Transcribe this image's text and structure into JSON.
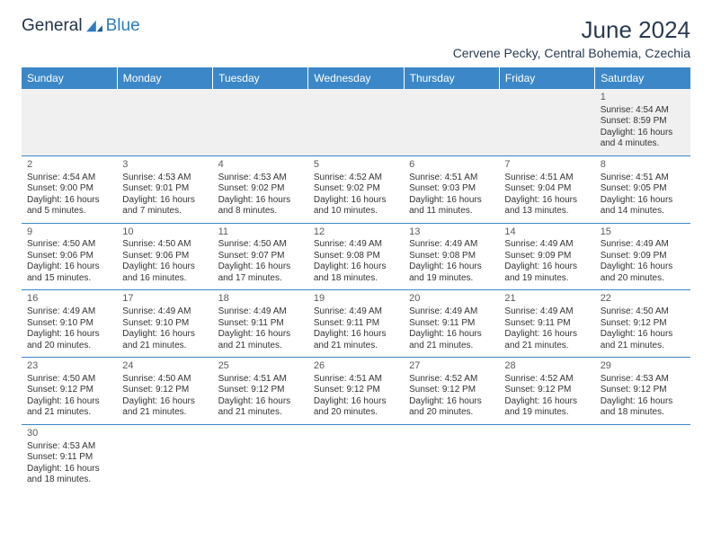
{
  "logo": {
    "text1": "General",
    "text2": "Blue"
  },
  "title": "June 2024",
  "location": "Cervene Pecky, Central Bohemia, Czechia",
  "colors": {
    "header_bg": "#3b87c8",
    "header_text": "#ffffff",
    "border": "#3b87c8",
    "title_color": "#2a3a52",
    "first_row_bg": "#f0f0f0"
  },
  "day_headers": [
    "Sunday",
    "Monday",
    "Tuesday",
    "Wednesday",
    "Thursday",
    "Friday",
    "Saturday"
  ],
  "weeks": [
    [
      null,
      null,
      null,
      null,
      null,
      null,
      {
        "n": "1",
        "sr": "Sunrise: 4:54 AM",
        "ss": "Sunset: 8:59 PM",
        "d1": "Daylight: 16 hours",
        "d2": "and 4 minutes."
      }
    ],
    [
      {
        "n": "2",
        "sr": "Sunrise: 4:54 AM",
        "ss": "Sunset: 9:00 PM",
        "d1": "Daylight: 16 hours",
        "d2": "and 5 minutes."
      },
      {
        "n": "3",
        "sr": "Sunrise: 4:53 AM",
        "ss": "Sunset: 9:01 PM",
        "d1": "Daylight: 16 hours",
        "d2": "and 7 minutes."
      },
      {
        "n": "4",
        "sr": "Sunrise: 4:53 AM",
        "ss": "Sunset: 9:02 PM",
        "d1": "Daylight: 16 hours",
        "d2": "and 8 minutes."
      },
      {
        "n": "5",
        "sr": "Sunrise: 4:52 AM",
        "ss": "Sunset: 9:02 PM",
        "d1": "Daylight: 16 hours",
        "d2": "and 10 minutes."
      },
      {
        "n": "6",
        "sr": "Sunrise: 4:51 AM",
        "ss": "Sunset: 9:03 PM",
        "d1": "Daylight: 16 hours",
        "d2": "and 11 minutes."
      },
      {
        "n": "7",
        "sr": "Sunrise: 4:51 AM",
        "ss": "Sunset: 9:04 PM",
        "d1": "Daylight: 16 hours",
        "d2": "and 13 minutes."
      },
      {
        "n": "8",
        "sr": "Sunrise: 4:51 AM",
        "ss": "Sunset: 9:05 PM",
        "d1": "Daylight: 16 hours",
        "d2": "and 14 minutes."
      }
    ],
    [
      {
        "n": "9",
        "sr": "Sunrise: 4:50 AM",
        "ss": "Sunset: 9:06 PM",
        "d1": "Daylight: 16 hours",
        "d2": "and 15 minutes."
      },
      {
        "n": "10",
        "sr": "Sunrise: 4:50 AM",
        "ss": "Sunset: 9:06 PM",
        "d1": "Daylight: 16 hours",
        "d2": "and 16 minutes."
      },
      {
        "n": "11",
        "sr": "Sunrise: 4:50 AM",
        "ss": "Sunset: 9:07 PM",
        "d1": "Daylight: 16 hours",
        "d2": "and 17 minutes."
      },
      {
        "n": "12",
        "sr": "Sunrise: 4:49 AM",
        "ss": "Sunset: 9:08 PM",
        "d1": "Daylight: 16 hours",
        "d2": "and 18 minutes."
      },
      {
        "n": "13",
        "sr": "Sunrise: 4:49 AM",
        "ss": "Sunset: 9:08 PM",
        "d1": "Daylight: 16 hours",
        "d2": "and 19 minutes."
      },
      {
        "n": "14",
        "sr": "Sunrise: 4:49 AM",
        "ss": "Sunset: 9:09 PM",
        "d1": "Daylight: 16 hours",
        "d2": "and 19 minutes."
      },
      {
        "n": "15",
        "sr": "Sunrise: 4:49 AM",
        "ss": "Sunset: 9:09 PM",
        "d1": "Daylight: 16 hours",
        "d2": "and 20 minutes."
      }
    ],
    [
      {
        "n": "16",
        "sr": "Sunrise: 4:49 AM",
        "ss": "Sunset: 9:10 PM",
        "d1": "Daylight: 16 hours",
        "d2": "and 20 minutes."
      },
      {
        "n": "17",
        "sr": "Sunrise: 4:49 AM",
        "ss": "Sunset: 9:10 PM",
        "d1": "Daylight: 16 hours",
        "d2": "and 21 minutes."
      },
      {
        "n": "18",
        "sr": "Sunrise: 4:49 AM",
        "ss": "Sunset: 9:11 PM",
        "d1": "Daylight: 16 hours",
        "d2": "and 21 minutes."
      },
      {
        "n": "19",
        "sr": "Sunrise: 4:49 AM",
        "ss": "Sunset: 9:11 PM",
        "d1": "Daylight: 16 hours",
        "d2": "and 21 minutes."
      },
      {
        "n": "20",
        "sr": "Sunrise: 4:49 AM",
        "ss": "Sunset: 9:11 PM",
        "d1": "Daylight: 16 hours",
        "d2": "and 21 minutes."
      },
      {
        "n": "21",
        "sr": "Sunrise: 4:49 AM",
        "ss": "Sunset: 9:11 PM",
        "d1": "Daylight: 16 hours",
        "d2": "and 21 minutes."
      },
      {
        "n": "22",
        "sr": "Sunrise: 4:50 AM",
        "ss": "Sunset: 9:12 PM",
        "d1": "Daylight: 16 hours",
        "d2": "and 21 minutes."
      }
    ],
    [
      {
        "n": "23",
        "sr": "Sunrise: 4:50 AM",
        "ss": "Sunset: 9:12 PM",
        "d1": "Daylight: 16 hours",
        "d2": "and 21 minutes."
      },
      {
        "n": "24",
        "sr": "Sunrise: 4:50 AM",
        "ss": "Sunset: 9:12 PM",
        "d1": "Daylight: 16 hours",
        "d2": "and 21 minutes."
      },
      {
        "n": "25",
        "sr": "Sunrise: 4:51 AM",
        "ss": "Sunset: 9:12 PM",
        "d1": "Daylight: 16 hours",
        "d2": "and 21 minutes."
      },
      {
        "n": "26",
        "sr": "Sunrise: 4:51 AM",
        "ss": "Sunset: 9:12 PM",
        "d1": "Daylight: 16 hours",
        "d2": "and 20 minutes."
      },
      {
        "n": "27",
        "sr": "Sunrise: 4:52 AM",
        "ss": "Sunset: 9:12 PM",
        "d1": "Daylight: 16 hours",
        "d2": "and 20 minutes."
      },
      {
        "n": "28",
        "sr": "Sunrise: 4:52 AM",
        "ss": "Sunset: 9:12 PM",
        "d1": "Daylight: 16 hours",
        "d2": "and 19 minutes."
      },
      {
        "n": "29",
        "sr": "Sunrise: 4:53 AM",
        "ss": "Sunset: 9:12 PM",
        "d1": "Daylight: 16 hours",
        "d2": "and 18 minutes."
      }
    ],
    [
      {
        "n": "30",
        "sr": "Sunrise: 4:53 AM",
        "ss": "Sunset: 9:11 PM",
        "d1": "Daylight: 16 hours",
        "d2": "and 18 minutes."
      },
      null,
      null,
      null,
      null,
      null,
      null
    ]
  ]
}
